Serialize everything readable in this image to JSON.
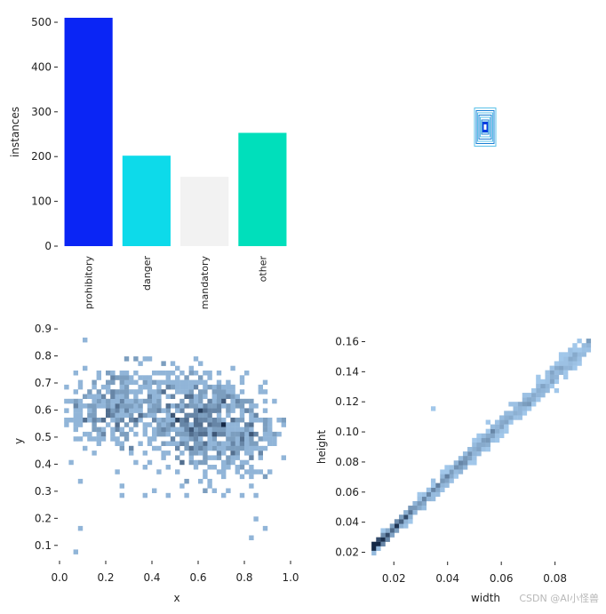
{
  "watermark": "CSDN @AI小怪兽",
  "chart_data": [
    {
      "type": "bar",
      "categories": [
        "prohibitory",
        "danger",
        "mandatory",
        "other"
      ],
      "values": [
        510,
        202,
        155,
        253
      ],
      "colors": [
        "#0a25f5",
        "#0ddaea",
        "#f2f2f2",
        "#00dfbb"
      ],
      "ylabel": "instances",
      "xlabel": "",
      "ylim": [
        0,
        510
      ],
      "yticks": [
        0,
        100,
        200,
        300,
        400,
        500
      ],
      "grid": false
    },
    {
      "type": "heatmap",
      "description_key": "bounding-box-overlay",
      "colors": [
        "#1a7fd4",
        "#0b3fe0",
        "#5ac0e8"
      ]
    },
    {
      "type": "heatmap",
      "xlabel": "x",
      "ylabel": "y",
      "xlim": [
        0,
        1
      ],
      "ylim": [
        0.05,
        0.92
      ],
      "xticks": [
        0.0,
        0.2,
        0.4,
        0.6,
        0.8,
        1.0
      ],
      "yticks": [
        0.1,
        0.2,
        0.3,
        0.4,
        0.5,
        0.6,
        0.7,
        0.8,
        0.9
      ],
      "bins": 50,
      "color": "#1f77d4",
      "clusters": [
        {
          "x": 0.23,
          "y": 0.6,
          "sx": 0.11,
          "sy": 0.08,
          "n": 260
        },
        {
          "x": 0.62,
          "y": 0.55,
          "sx": 0.09,
          "sy": 0.09,
          "n": 380
        },
        {
          "x": 0.8,
          "y": 0.5,
          "sx": 0.09,
          "sy": 0.08,
          "n": 180
        },
        {
          "x": 0.45,
          "y": 0.65,
          "sx": 0.15,
          "sy": 0.08,
          "n": 150
        },
        {
          "x": 0.5,
          "y": 0.4,
          "sx": 0.25,
          "sy": 0.15,
          "n": 60
        }
      ],
      "outliers": [
        [
          0.1,
          0.86
        ],
        [
          0.08,
          0.17
        ],
        [
          0.07,
          0.08
        ],
        [
          0.85,
          0.2
        ],
        [
          0.88,
          0.16
        ],
        [
          0.82,
          0.12
        ]
      ]
    },
    {
      "type": "heatmap",
      "xlabel": "width",
      "ylabel": "height",
      "xlim": [
        0.01,
        0.095
      ],
      "ylim": [
        0.015,
        0.165
      ],
      "xticks": [
        0.02,
        0.04,
        0.06,
        0.08
      ],
      "yticks": [
        0.02,
        0.04,
        0.06,
        0.08,
        0.1,
        0.12,
        0.14,
        0.16
      ],
      "bins": 50,
      "color": "#1f77d4",
      "trend": {
        "slope": 1.7,
        "intercept": 0.002,
        "wmin": 0.012,
        "wmax": 0.093
      },
      "outliers": [
        [
          0.035,
          0.115
        ],
        [
          0.088,
          0.158
        ]
      ]
    }
  ]
}
